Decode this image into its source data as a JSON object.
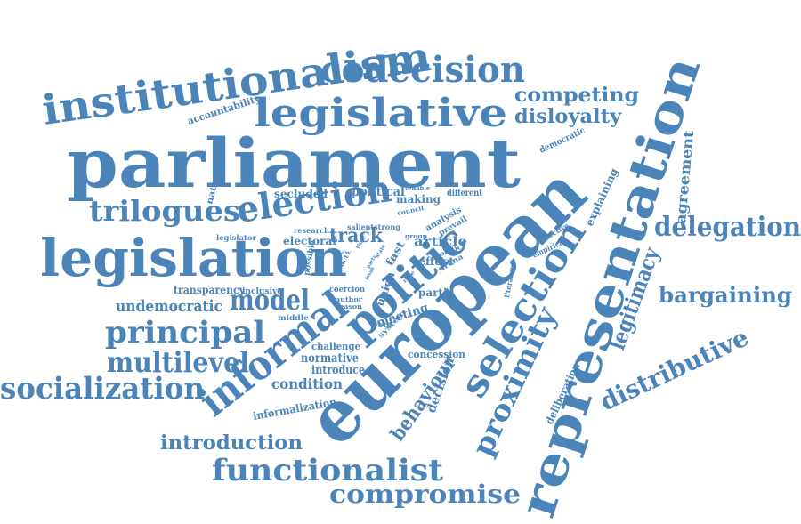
{
  "color": "#4a84b8",
  "words": [
    "institutionalism",
    "codecision",
    "legislative",
    "competing",
    "disloyalty",
    "accountability",
    "parliament",
    "european",
    "representation",
    "trilogues",
    "election",
    "legislation",
    "delegation",
    "politic",
    "selection",
    "informal",
    "principal",
    "multilevel",
    "socialization",
    "model",
    "undemocratic",
    "bargaining",
    "legitimacy",
    "distributive",
    "proximity",
    "behaviour",
    "introduction",
    "functionalist",
    "compromise",
    "agreement",
    "explaining",
    "democratic",
    "political",
    "making",
    "secluded",
    "national",
    "different",
    "council",
    "tenable",
    "track",
    "electoral",
    "research",
    "salient",
    "strong",
    "article",
    "analysis",
    "prevail",
    "group",
    "collective",
    "empirical",
    "fast",
    "effect",
    "conflict",
    "arena",
    "union",
    "partie",
    "coercion",
    "author",
    "reason",
    "transparency",
    "inclusive",
    "middle",
    "possible",
    "legislator",
    "literature",
    "meeting",
    "system",
    "challenge",
    "normative",
    "introduce",
    "concession",
    "decision",
    "condition",
    "informalization",
    "deliberation",
    "vote",
    "time",
    "state",
    "party",
    "rule",
    "issue",
    "policy",
    "law",
    "act"
  ]
}
